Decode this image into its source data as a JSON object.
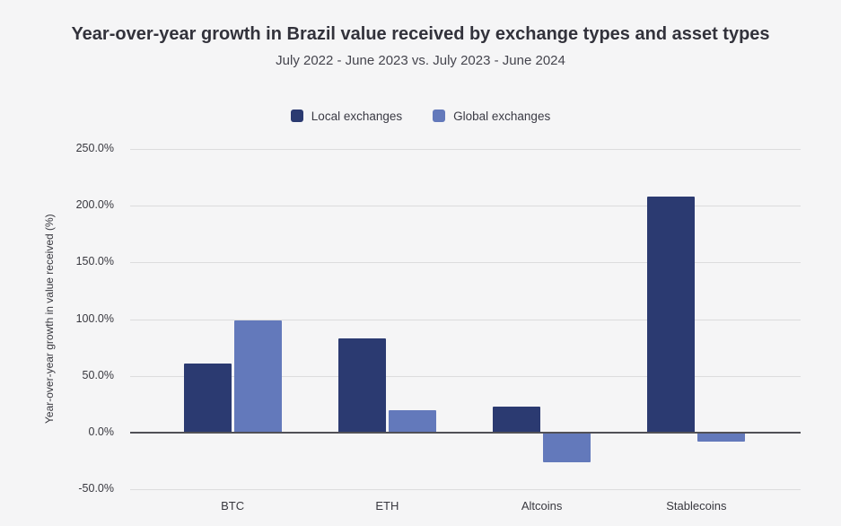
{
  "style": {
    "background": "#f5f5f6",
    "grid_color": "#dcdcdd",
    "zero_line_color": "#515157",
    "title_color": "#32323b",
    "subtitle_color": "#45454e"
  },
  "chart_data": {
    "type": "bar",
    "title": "Year-over-year growth in Brazil value received by exchange types and asset types",
    "subtitle": "July 2022 - June 2023 vs. July 2023 - June 2024",
    "categories": [
      "BTC",
      "ETH",
      "Altcoins",
      "Stablecoins"
    ],
    "series": [
      {
        "name": "Local exchanges",
        "color": "#2b3a71",
        "values": [
          61,
          83,
          23,
          208
        ]
      },
      {
        "name": "Global exchanges",
        "color": "#6379bb",
        "values": [
          99,
          20,
          -26,
          -8
        ]
      }
    ],
    "xlabel": "",
    "ylabel": "Year-over-year growth in value received (%)",
    "ylim": [
      -50,
      250
    ],
    "yticks": [
      250,
      200,
      150,
      100,
      50,
      0,
      -50
    ],
    "ytick_format": "one_decimal_percent",
    "grid": true,
    "legend_position": "top"
  }
}
